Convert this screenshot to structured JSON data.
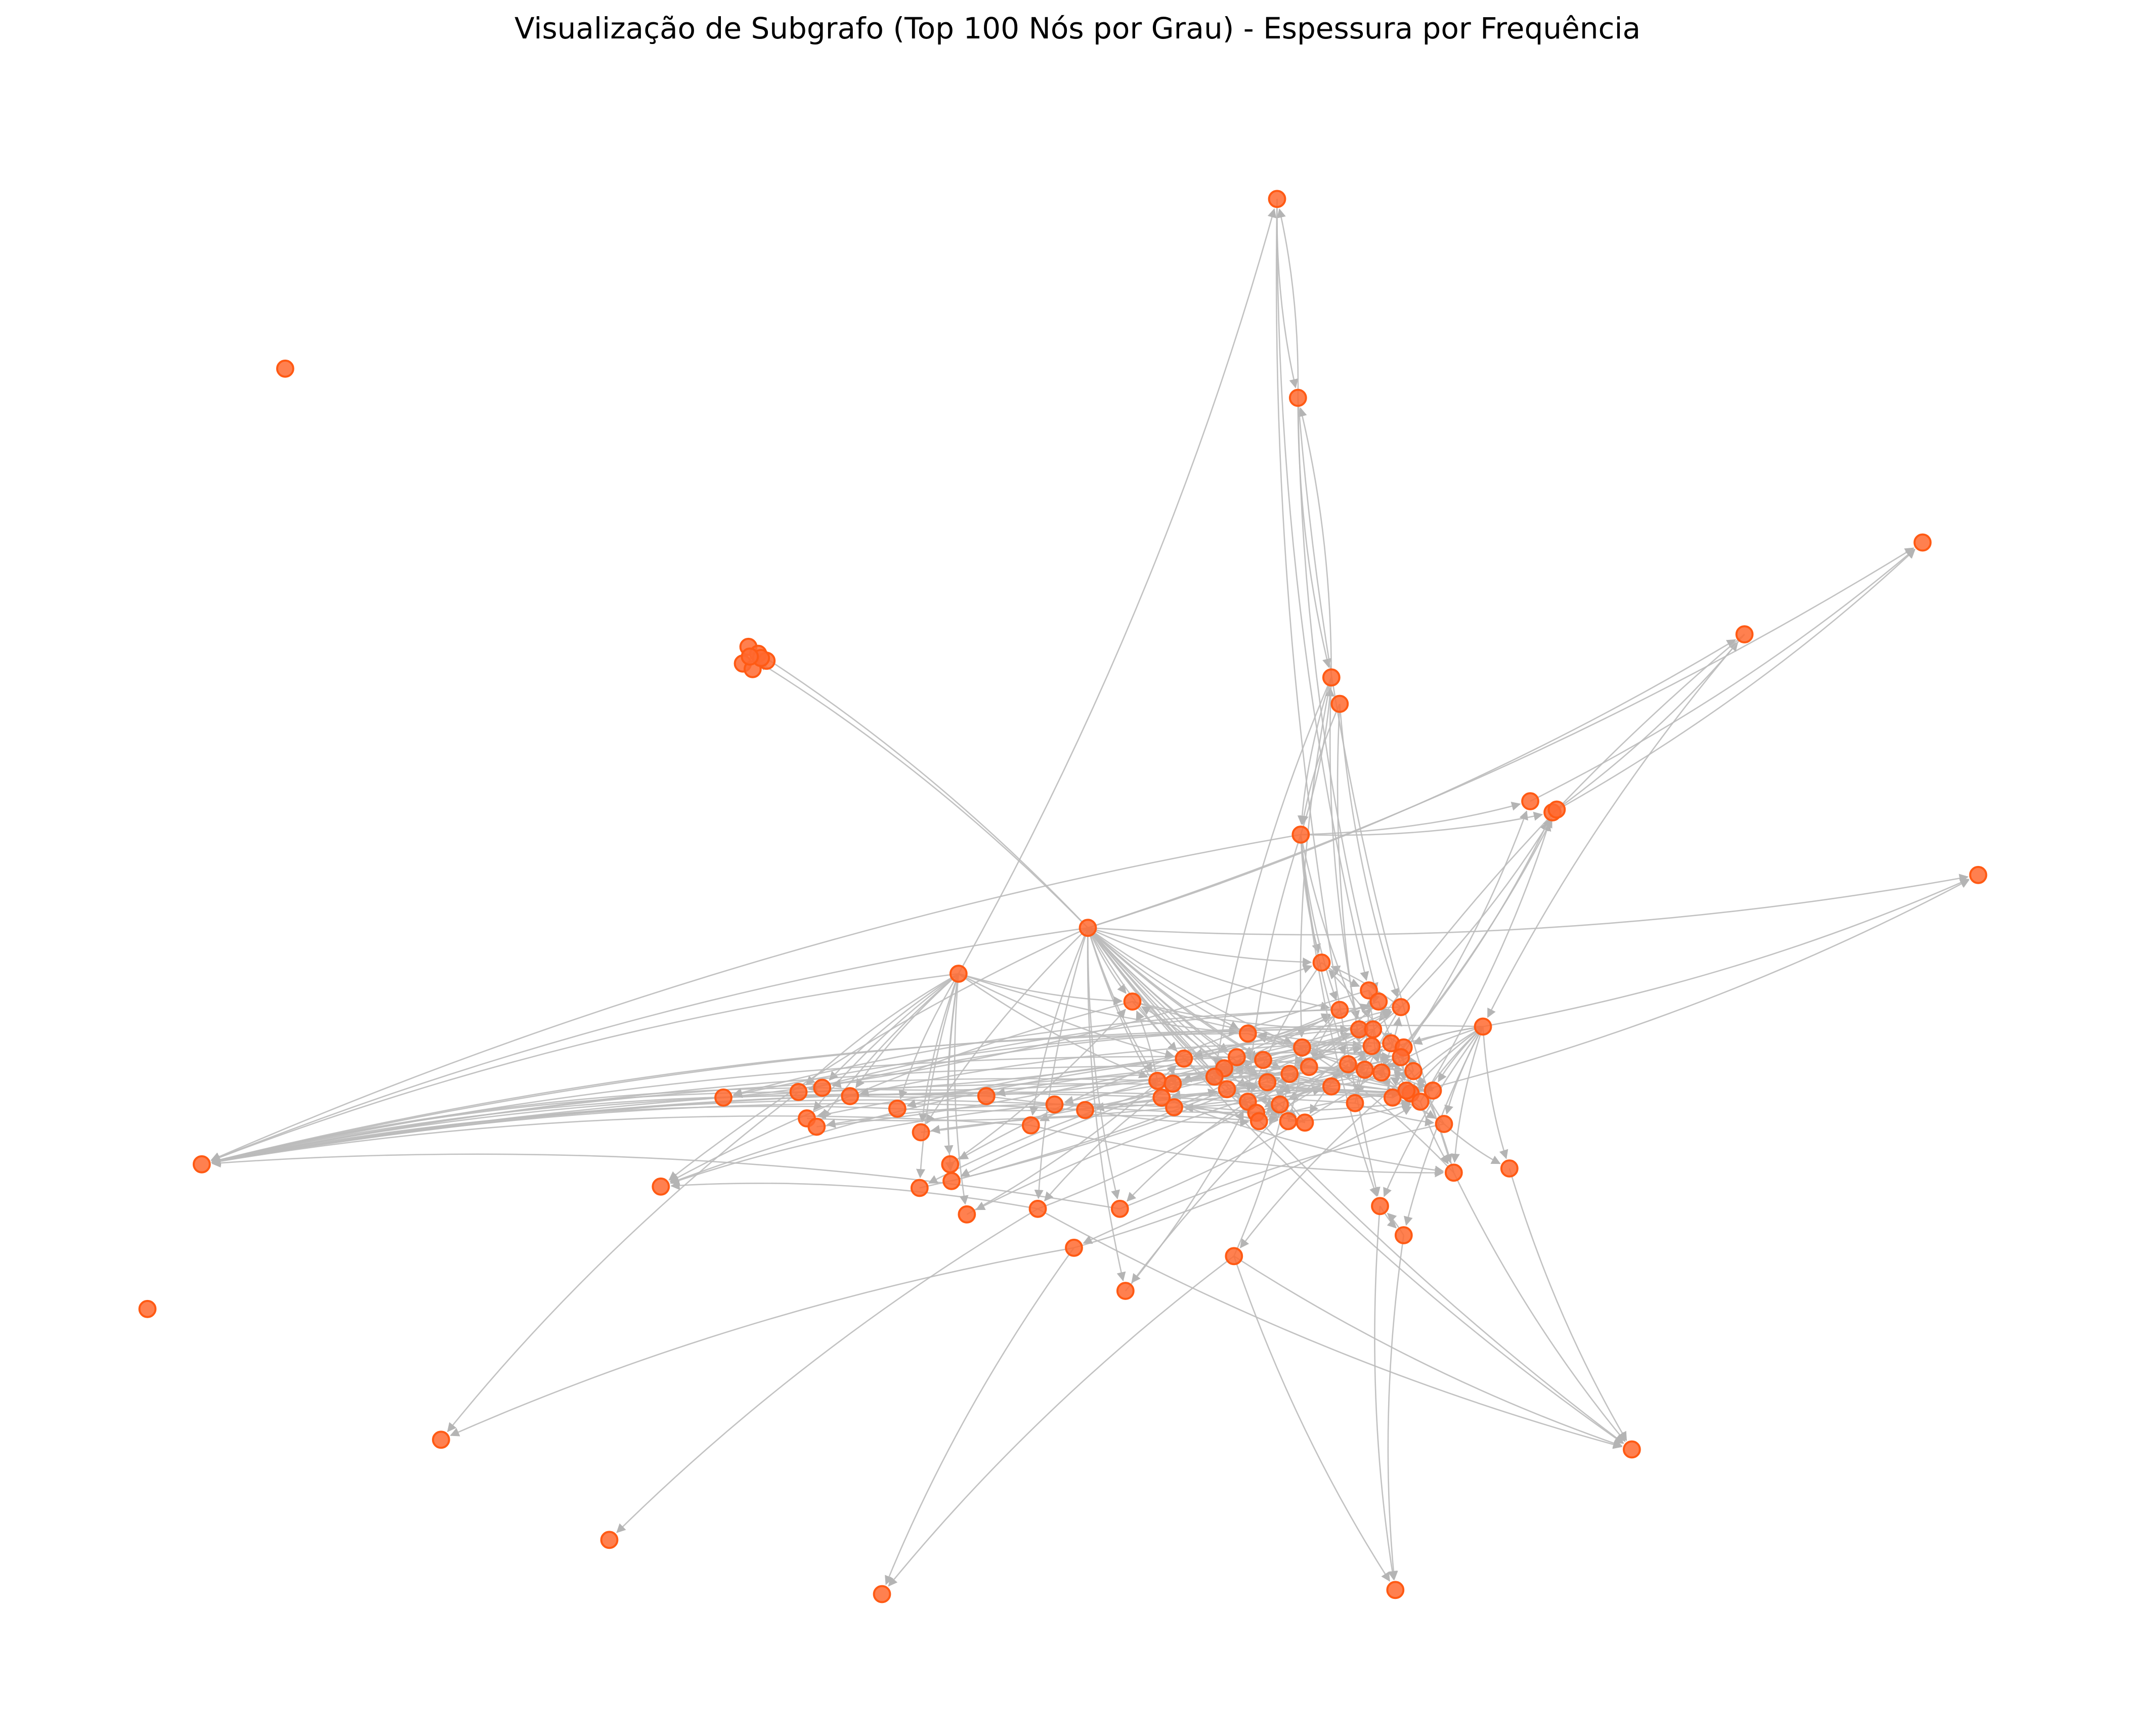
{
  "figure": {
    "title": "Visualização de Subgrafo (Top 100 Nós por Grau) - Espessura por Frequência"
  },
  "style": {
    "node_color": "#ff5a14",
    "node_fill": "#ff6a30",
    "edge_color": "#bbbbbb",
    "background": "#ffffff"
  },
  "graph": {
    "directed": true,
    "node_count": 100
  }
}
